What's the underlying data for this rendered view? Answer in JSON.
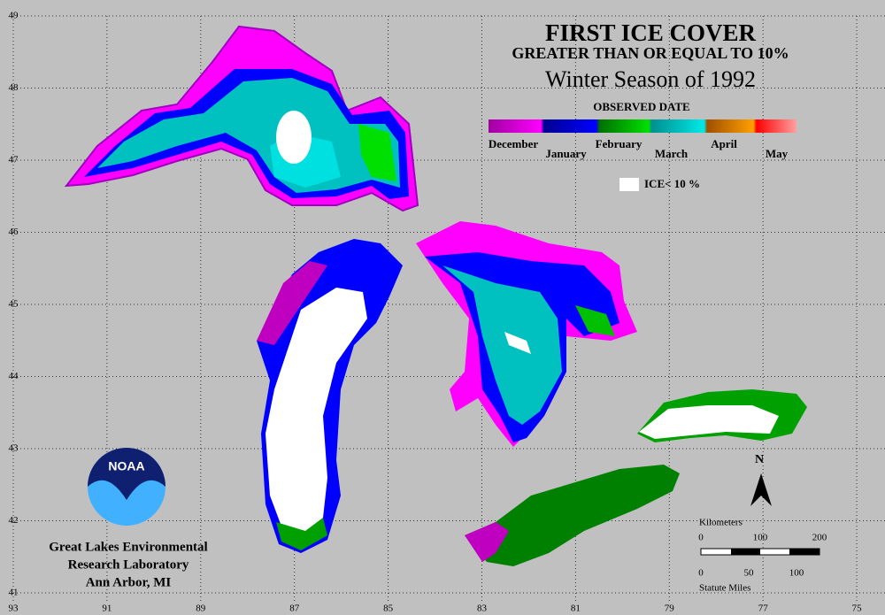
{
  "title": {
    "heading": "FIRST ICE COVER",
    "subheading": "GREATER THAN OR EQUAL TO 10%",
    "season": "Winter Season of 1992"
  },
  "legend": {
    "title": "OBSERVED DATE",
    "months": [
      "December",
      "January",
      "February",
      "March",
      "April",
      "May"
    ],
    "low_ice": "ICE< 10 %"
  },
  "latitudes": [
    49,
    48,
    47,
    46,
    45,
    44,
    43,
    42,
    41
  ],
  "longitudes": [
    93,
    91,
    89,
    87,
    85,
    83,
    81,
    79,
    77,
    75
  ],
  "logo": "NOAA",
  "lab": [
    "Great Lakes Environmental",
    "Research Laboratory",
    "Ann Arbor, MI"
  ],
  "north": "N",
  "scale": {
    "km_label": "Kilometers",
    "km": [
      0,
      100,
      200
    ],
    "mi": [
      0,
      50,
      100
    ],
    "mi_label": "Statute Miles"
  }
}
